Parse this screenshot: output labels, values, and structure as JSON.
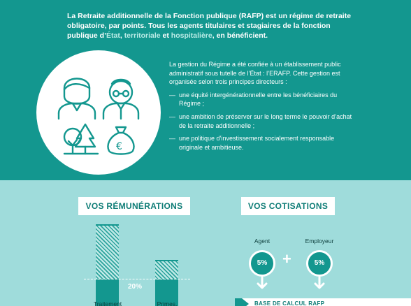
{
  "intro": {
    "part1": "La Retraite additionnelle de la Fonction publique (RAFP) est un régime de retraite obligatoire, par points. Tous les agents titulaires et stagiaires de la fonction publique d’",
    "etat": "État",
    "sep1": ", ",
    "territoriale": "territoriale",
    "sep2": " et ",
    "hospitaliere": "hospitalière",
    "part2": ", en bénéficient."
  },
  "governance": {
    "paragraph": "La gestion du Régime a été confiée à un établissement public administratif sous tutelle de l’État : l’ERAFP. Cette gestion est organisée selon trois principes directeurs :",
    "principles": [
      "une équité intergénérationnelle entre les bénéficiaires du Régime ;",
      "une ambition de préserver sur le long terme le pouvoir d’achat de la retraite additionnelle ;",
      "une politique d’investissement socialement responsable originale et ambitieuse."
    ]
  },
  "icons": {
    "young_person": "young-person-icon",
    "elder_person": "elder-person-icon",
    "trees": "trees-icon",
    "money_bag": "euro-money-bag-icon",
    "money_bag_symbol": "€"
  },
  "remunerations": {
    "title": "VOS RÉMUNÉRATIONS",
    "ratio_label": "20%",
    "ratio": 0.2,
    "bars": [
      {
        "label": "Traitement",
        "relative_height": 1.0
      },
      {
        "label": "Primes,",
        "relative_height": 0.42
      }
    ]
  },
  "cotisations": {
    "title": "VOS COTISATIONS",
    "agent_label": "Agent",
    "agent_rate": "5%",
    "plus_sign": "+",
    "employer_label": "Employeur",
    "employer_rate": "5%",
    "base_label": "BASE DE CALCUL RAFP"
  },
  "colors": {
    "dark_teal": "#13978f",
    "light_teal": "#9fdcdb",
    "highlight": "#b9ebe6",
    "title_text": "#0f7d77"
  }
}
